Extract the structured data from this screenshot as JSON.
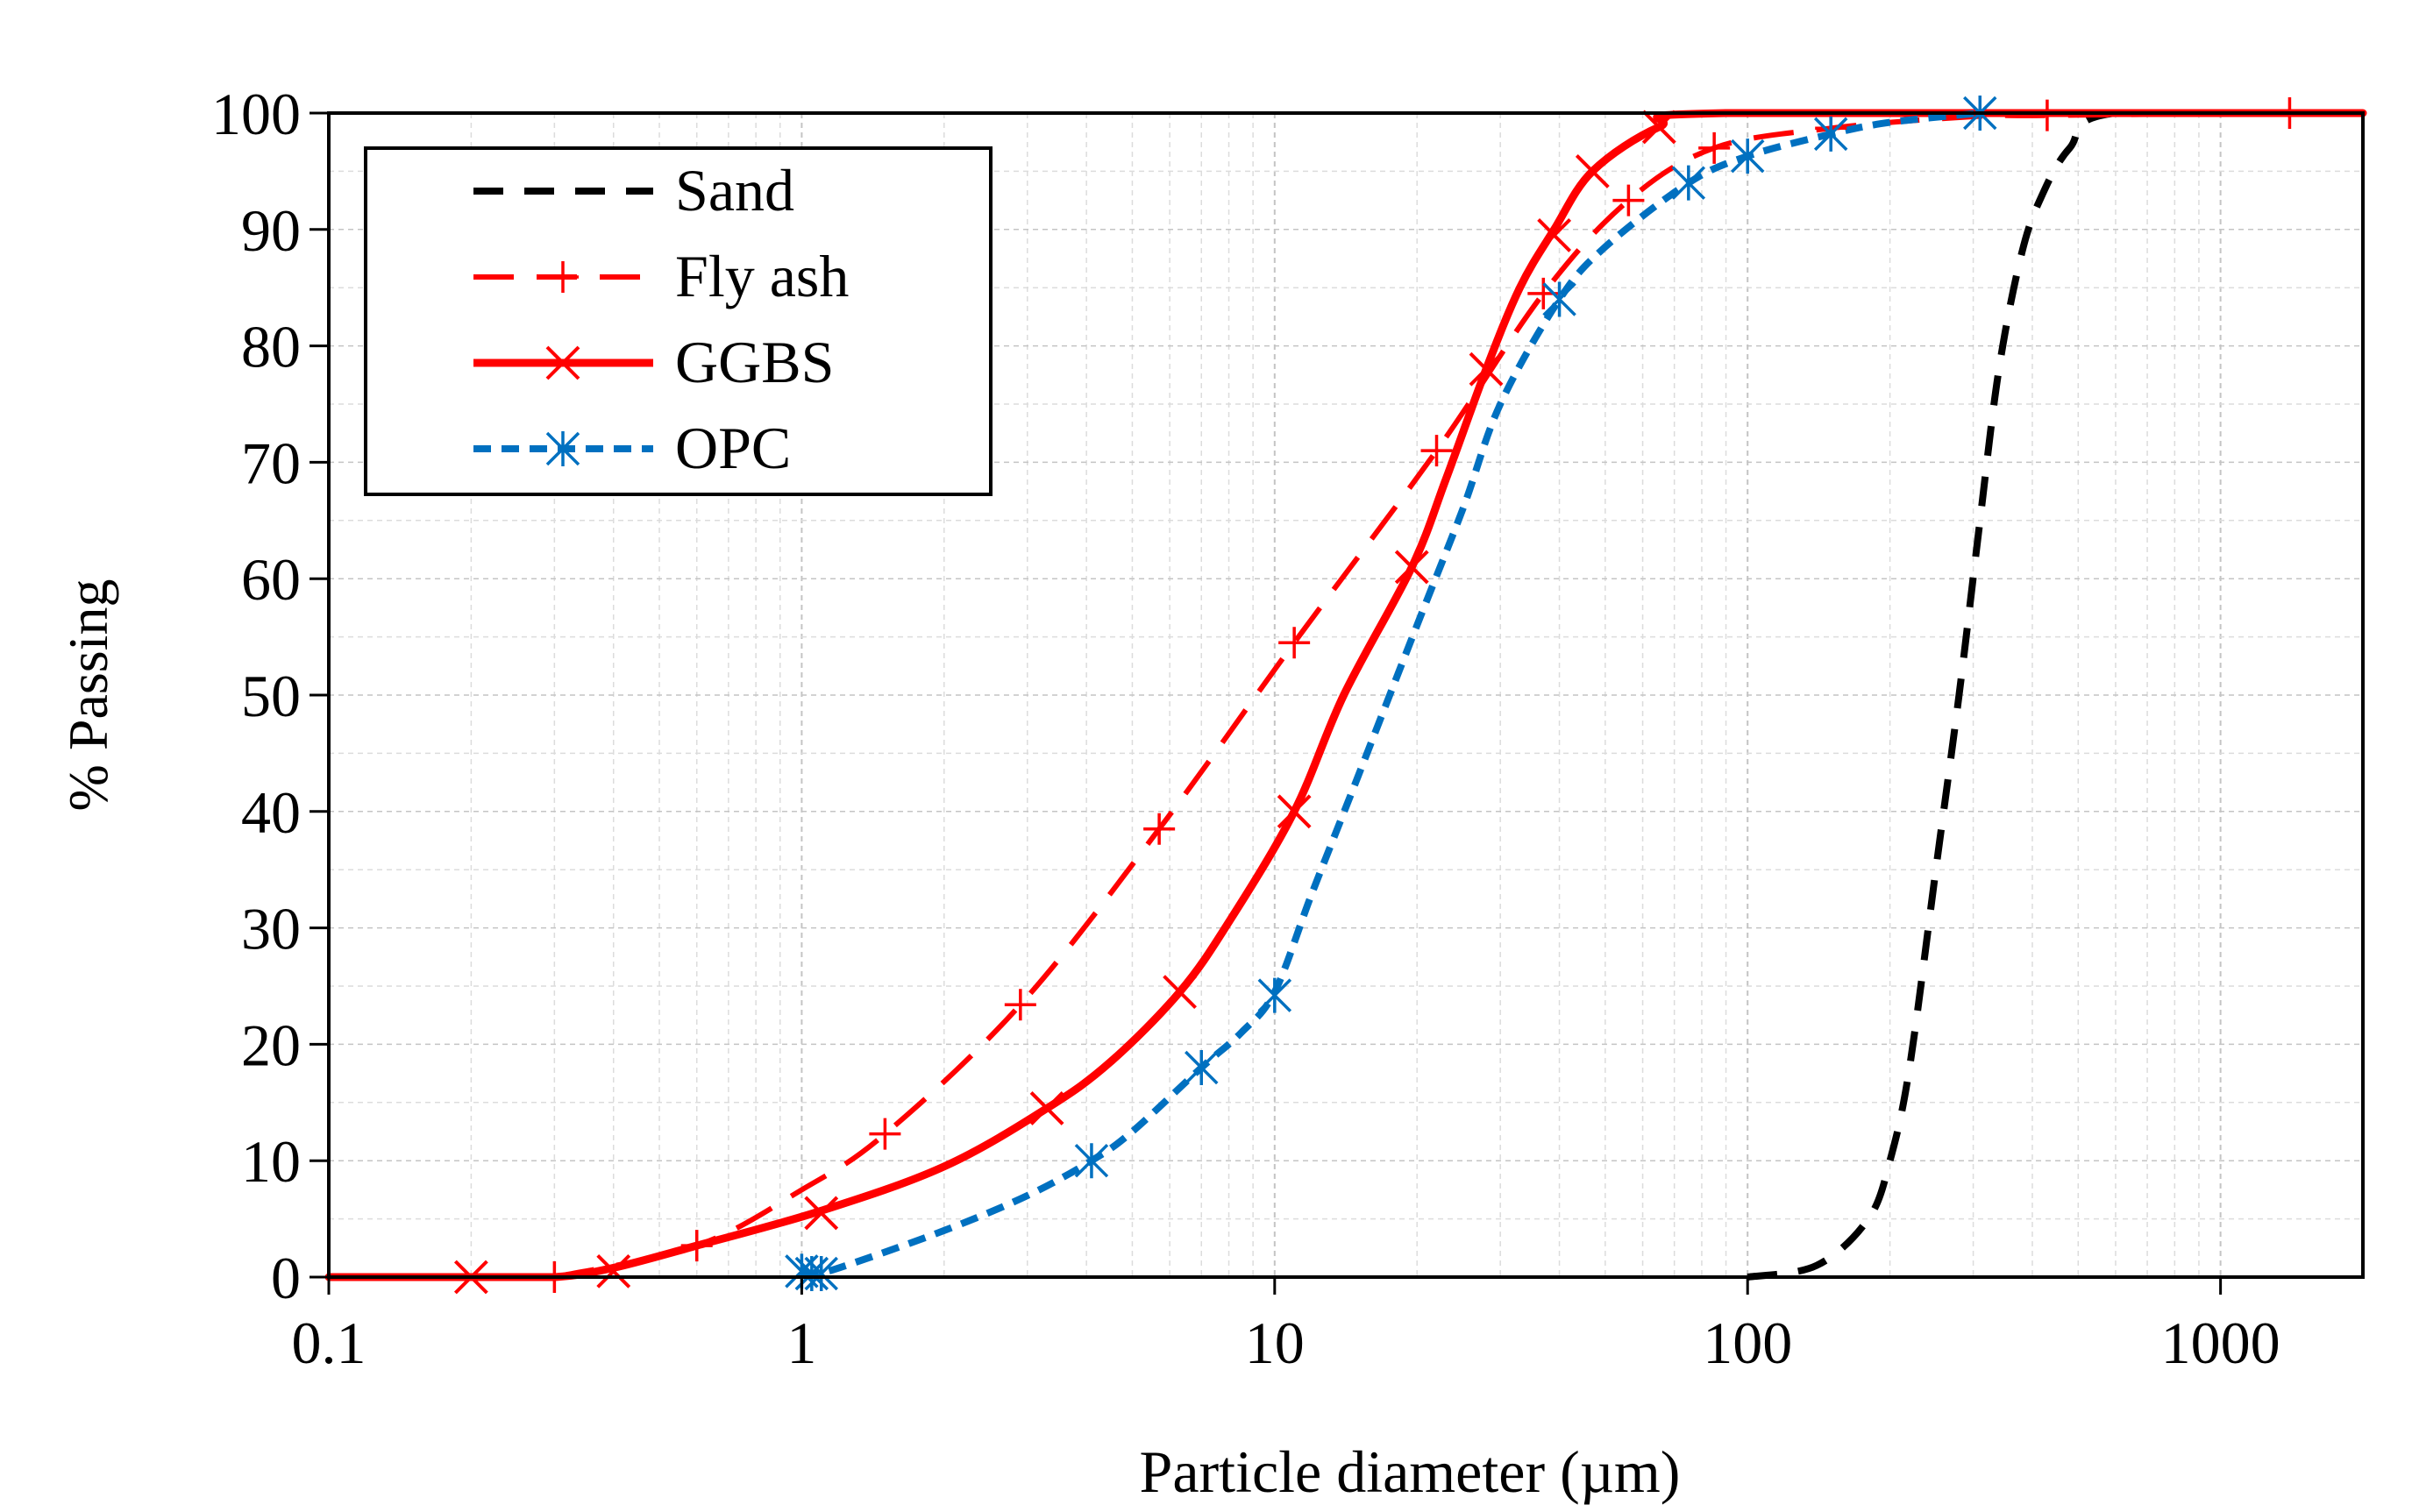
{
  "chart_data": {
    "type": "line",
    "title": "",
    "xlabel": "Particle diameter (µm)",
    "ylabel": "% Passing",
    "x_scale": "log",
    "xlim": [
      0.1,
      2000
    ],
    "ylim": [
      0,
      100
    ],
    "x_ticks": [
      0.1,
      1,
      10,
      100,
      1000
    ],
    "x_tick_labels": [
      "0.1",
      "1",
      "10",
      "100",
      "1000"
    ],
    "y_ticks": [
      0,
      10,
      20,
      30,
      40,
      50,
      60,
      70,
      80,
      90,
      100
    ],
    "y_tick_labels": [
      "0",
      "10",
      "20",
      "30",
      "40",
      "50",
      "60",
      "70",
      "80",
      "90",
      "100"
    ],
    "grid": true,
    "legend_position": "top-left",
    "series": [
      {
        "name": "Sand",
        "color": "#000000",
        "style": "long-dash",
        "marker": "none",
        "curve": [
          [
            100,
            0
          ],
          [
            140,
            1
          ],
          [
            180,
            5
          ],
          [
            200,
            10
          ],
          [
            220,
            18
          ],
          [
            250,
            35
          ],
          [
            280,
            50
          ],
          [
            310,
            65
          ],
          [
            340,
            78
          ],
          [
            380,
            88
          ],
          [
            420,
            93
          ],
          [
            480,
            97
          ],
          [
            600,
            100
          ],
          [
            2000,
            100
          ]
        ],
        "markers": []
      },
      {
        "name": "Fly ash",
        "color": "#ff0000",
        "style": "dash",
        "marker": "plus",
        "curve": [
          [
            0.3,
            0
          ],
          [
            0.6,
            2.7
          ],
          [
            1,
            7.5
          ],
          [
            1.5,
            12.3
          ],
          [
            2.9,
            23.4
          ],
          [
            5.7,
            38.5
          ],
          [
            11,
            54.5
          ],
          [
            22,
            71
          ],
          [
            37,
            84.5
          ],
          [
            56,
            92.5
          ],
          [
            85,
            97
          ],
          [
            150,
            98.7
          ],
          [
            300,
            99.7
          ],
          [
            430,
            99.8
          ],
          [
            1400,
            100
          ],
          [
            2000,
            100
          ]
        ],
        "markers": [
          [
            0.3,
            0
          ],
          [
            0.6,
            2.7
          ],
          [
            1.5,
            12.3
          ],
          [
            2.9,
            23.4
          ],
          [
            5.7,
            38.5
          ],
          [
            11,
            54.5
          ],
          [
            22,
            71
          ],
          [
            37,
            84.5
          ],
          [
            56,
            92.5
          ],
          [
            85,
            97
          ],
          [
            150,
            98.7
          ],
          [
            430,
            99.8
          ],
          [
            1400,
            100
          ]
        ]
      },
      {
        "name": "GGBS",
        "color": "#ff0000",
        "style": "solid",
        "marker": "x",
        "curve": [
          [
            0.1,
            0
          ],
          [
            0.2,
            0
          ],
          [
            0.3,
            0
          ],
          [
            0.4,
            0.8
          ],
          [
            0.6,
            2.7
          ],
          [
            1.1,
            5.7
          ],
          [
            2,
            9.5
          ],
          [
            3.3,
            14.5
          ],
          [
            4.5,
            18.5
          ],
          [
            6.3,
            24.5
          ],
          [
            8,
            30.5
          ],
          [
            11,
            40
          ],
          [
            14,
            50
          ],
          [
            19.5,
            61
          ],
          [
            23,
            68.5
          ],
          [
            28,
            78
          ],
          [
            33,
            85
          ],
          [
            39,
            90
          ],
          [
            47,
            95
          ],
          [
            65,
            98.8
          ],
          [
            90,
            100
          ],
          [
            2000,
            100
          ]
        ],
        "markers": [
          [
            0.2,
            0
          ],
          [
            0.4,
            0.5
          ],
          [
            1.1,
            5.5
          ],
          [
            3.3,
            14.5
          ],
          [
            6.3,
            24.5
          ],
          [
            11,
            40
          ],
          [
            19.5,
            61
          ],
          [
            28,
            78
          ],
          [
            39,
            89.5
          ],
          [
            47,
            95
          ],
          [
            65,
            98.8
          ]
        ]
      },
      {
        "name": "OPC",
        "color": "#0070c0",
        "style": "short-dash",
        "marker": "asterisk",
        "curve": [
          [
            1,
            0.5
          ],
          [
            1.05,
            0.3
          ],
          [
            1.2,
            0.8
          ],
          [
            2,
            4
          ],
          [
            3,
            7
          ],
          [
            4.1,
            10
          ],
          [
            5,
            12.5
          ],
          [
            7,
            18
          ],
          [
            8.5,
            21
          ],
          [
            10,
            24.5
          ],
          [
            12,
            33
          ],
          [
            15,
            43
          ],
          [
            20,
            56
          ],
          [
            25,
            66
          ],
          [
            30,
            75
          ],
          [
            40,
            84
          ],
          [
            50,
            88.5
          ],
          [
            75,
            94
          ],
          [
            100,
            96.3
          ],
          [
            150,
            98.2
          ],
          [
            200,
            99.2
          ],
          [
            310,
            100
          ]
        ],
        "markers": [
          [
            1,
            0.5
          ],
          [
            1.05,
            0.3
          ],
          [
            1.1,
            0.3
          ],
          [
            4.1,
            10
          ],
          [
            7,
            18
          ],
          [
            10,
            24.2
          ],
          [
            40,
            84
          ],
          [
            75,
            94
          ],
          [
            100,
            96.3
          ],
          [
            150,
            98.2
          ],
          [
            310,
            100
          ]
        ]
      }
    ]
  }
}
